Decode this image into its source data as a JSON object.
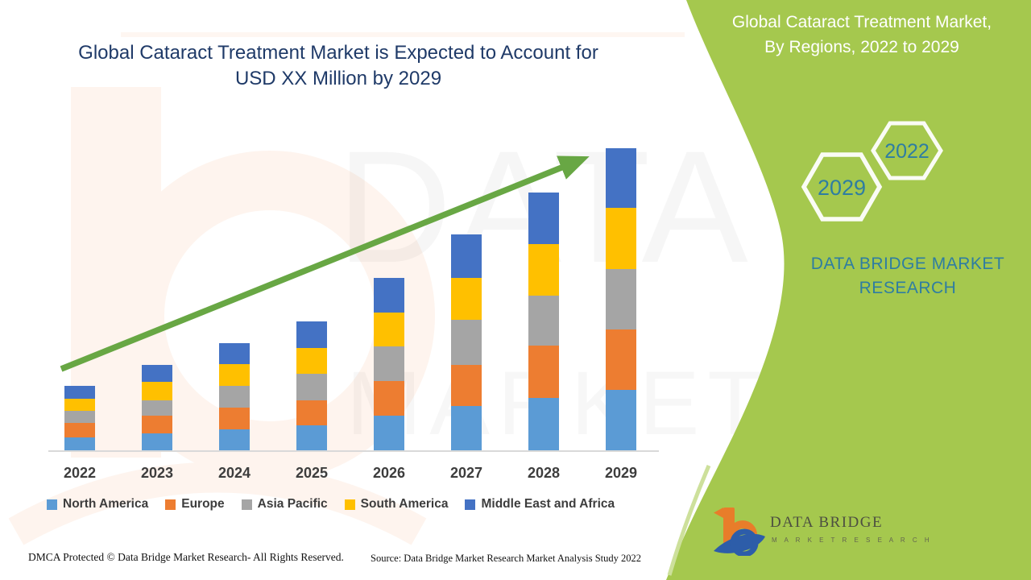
{
  "header": {
    "title_line1": "Global Cataract Treatment Market is Expected to Account for",
    "title_line2": "USD XX Million by 2029",
    "title_color": "#1f3a68"
  },
  "banner": {
    "line1": "Global Cataract Treatment Market,",
    "line2": "By Regions, 2022 to 2029",
    "bg_color": "#a5c84e",
    "text_color": "#ffffff"
  },
  "badges": {
    "hex_large_label": "2029",
    "hex_small_label": "2022",
    "brand_line1": "DATA BRIDGE MARKET",
    "brand_line2": "RESEARCH",
    "text_color": "#2e7da2"
  },
  "chart_data": {
    "type": "bar",
    "stacked": true,
    "title": "Global Cataract Treatment Market is Expected to Account for USD XX Million by 2029",
    "xlabel": "",
    "ylabel": "",
    "units": "relative market size (actual USD XX Million values not shown)",
    "y_axis_visible": false,
    "grid": false,
    "legend_position": "bottom",
    "trend_arrow": {
      "present": true,
      "color": "#68a744",
      "direction": "up-right"
    },
    "categories": [
      "2022",
      "2023",
      "2024",
      "2025",
      "2026",
      "2027",
      "2028",
      "2029"
    ],
    "series": [
      {
        "name": "North America",
        "color": "#5B9BD5",
        "values": [
          16,
          21,
          26,
          31,
          43,
          55,
          65,
          75
        ]
      },
      {
        "name": "Europe",
        "color": "#ED7D31",
        "values": [
          18,
          22,
          27,
          31,
          43,
          51,
          65,
          75
        ]
      },
      {
        "name": "Asia Pacific",
        "color": "#A5A5A5",
        "values": [
          15,
          19,
          27,
          33,
          43,
          56,
          62,
          75
        ]
      },
      {
        "name": "South America",
        "color": "#FFC000",
        "values": [
          15,
          23,
          27,
          32,
          42,
          52,
          64,
          76
        ]
      },
      {
        "name": "Middle East and Africa",
        "color": "#4472C4",
        "values": [
          16,
          21,
          26,
          33,
          43,
          54,
          64,
          74
        ]
      }
    ],
    "totals": [
      80,
      106,
      133,
      160,
      214,
      268,
      320,
      375
    ]
  },
  "watermark": {
    "text1": "DATA BRIDGE",
    "text2": "MARKET RESEARCH"
  },
  "footer": {
    "dmca": "DMCA Protected © Data Bridge Market Research- All Rights Reserved.",
    "source": "Source: Data Bridge Market Research Market Analysis Study 2022",
    "logo_name": "DATA BRIDGE",
    "logo_sub": "M A R K E T   R E S E A R C H"
  }
}
